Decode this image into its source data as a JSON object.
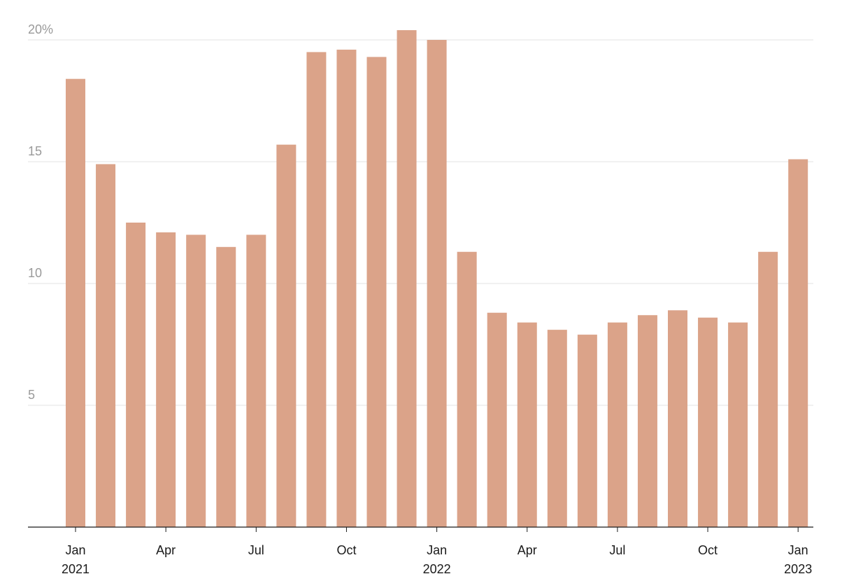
{
  "chart_data": {
    "type": "bar",
    "title": "",
    "xlabel": "",
    "ylabel": "",
    "ylim": [
      0,
      20
    ],
    "grid": true,
    "colors": {
      "bar": "#dba389",
      "grid": "#e3e3e3",
      "axis": "#1a1a1a"
    },
    "y_ticks": [
      {
        "value": 5,
        "label": "5"
      },
      {
        "value": 10,
        "label": "10"
      },
      {
        "value": 15,
        "label": "15"
      },
      {
        "value": 20,
        "label": "20%"
      }
    ],
    "categories": [
      "2021-01",
      "2021-02",
      "2021-03",
      "2021-04",
      "2021-05",
      "2021-06",
      "2021-07",
      "2021-08",
      "2021-09",
      "2021-10",
      "2021-11",
      "2021-12",
      "2022-01",
      "2022-02",
      "2022-03",
      "2022-04",
      "2022-05",
      "2022-06",
      "2022-07",
      "2022-08",
      "2022-09",
      "2022-10",
      "2022-11",
      "2022-12",
      "2023-01"
    ],
    "values": [
      18.4,
      14.9,
      12.5,
      12.1,
      12.0,
      11.5,
      12.0,
      15.7,
      19.5,
      19.6,
      19.3,
      20.4,
      20.0,
      11.3,
      8.8,
      8.4,
      8.1,
      7.9,
      8.4,
      8.7,
      8.9,
      8.6,
      8.4,
      11.3,
      15.1
    ],
    "x_ticks": [
      {
        "index": 0,
        "label": "Jan",
        "sublabel": "2021"
      },
      {
        "index": 3,
        "label": "Apr",
        "sublabel": ""
      },
      {
        "index": 6,
        "label": "Jul",
        "sublabel": ""
      },
      {
        "index": 9,
        "label": "Oct",
        "sublabel": ""
      },
      {
        "index": 12,
        "label": "Jan",
        "sublabel": "2022"
      },
      {
        "index": 15,
        "label": "Apr",
        "sublabel": ""
      },
      {
        "index": 18,
        "label": "Jul",
        "sublabel": ""
      },
      {
        "index": 21,
        "label": "Oct",
        "sublabel": ""
      },
      {
        "index": 24,
        "label": "Jan",
        "sublabel": "2023"
      }
    ]
  }
}
